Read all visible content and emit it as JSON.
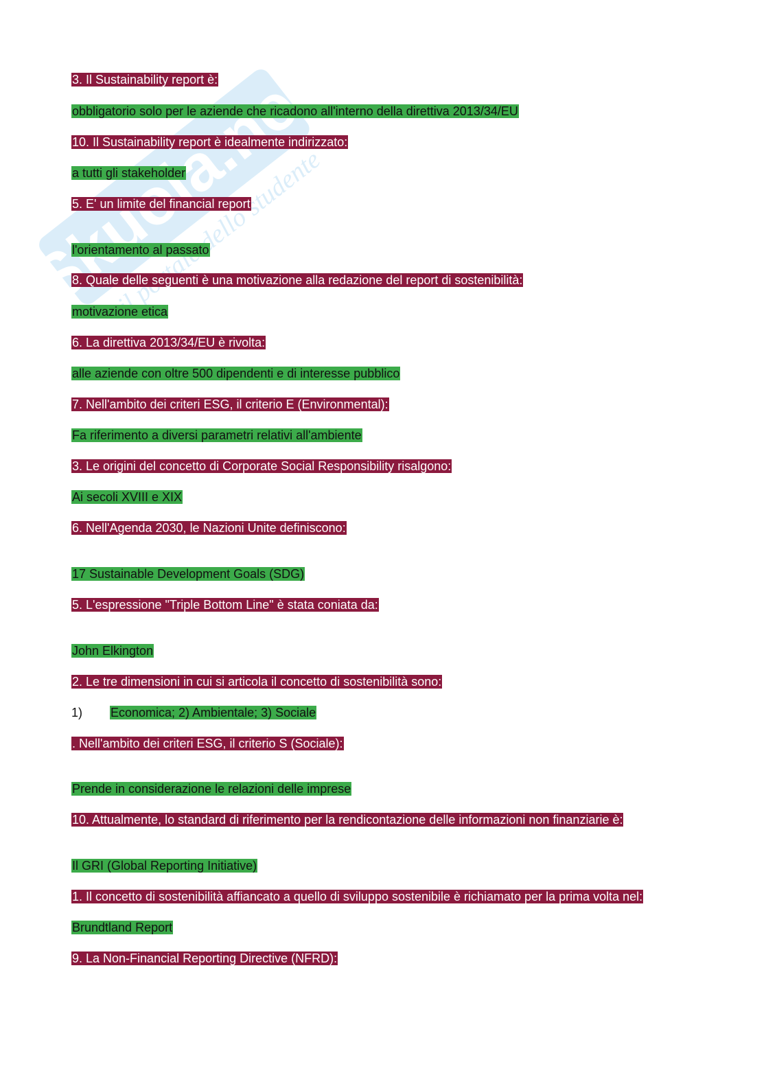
{
  "watermark": {
    "logo_text": "Skuola.net",
    "tagline": "il portale dello studente"
  },
  "lines": [
    {
      "type": "q",
      "text": "3. Il Sustainability report è:"
    },
    {
      "type": "a",
      "text": "obbligatorio solo per le aziende che ricadono all'interno della direttiva 2013/34/EU"
    },
    {
      "type": "q",
      "text": "10. Il Sustainability report è idealmente indirizzato:"
    },
    {
      "type": "a",
      "text": "a tutti gli stakeholder"
    },
    {
      "type": "q",
      "text": "5. E' un limite del financial report"
    },
    {
      "type": "a",
      "text": "l'orientamento al passato"
    },
    {
      "type": "q",
      "text": "8. Quale delle seguenti è una motivazione alla redazione del report di sostenibilità:"
    },
    {
      "type": "a",
      "text": "motivazione etica"
    },
    {
      "type": "q",
      "text": "6. La direttiva 2013/34/EU è rivolta:"
    },
    {
      "type": "a",
      "text": "alle aziende con oltre 500 dipendenti e di interesse pubblico"
    },
    {
      "type": "q",
      "text": "7. Nell'ambito dei criteri ESG, il criterio E (Environmental):"
    },
    {
      "type": "a",
      "text": "Fa riferimento a diversi parametri relativi all'ambiente"
    },
    {
      "type": "q",
      "text": "3. Le origini del concetto di Corporate Social Responsibility risalgono:"
    },
    {
      "type": "a",
      "text": "Ai secoli XVIII e XIX"
    },
    {
      "type": "q",
      "text": "6. Nell'Agenda 2030, le Nazioni Unite definiscono:"
    },
    {
      "type": "a",
      "text": "17 Sustainable Development Goals (SDG)"
    },
    {
      "type": "q",
      "text": "5. L'espressione \"Triple Bottom Line\" è stata coniata da:"
    },
    {
      "type": "a",
      "text": "John Elkington"
    },
    {
      "type": "q",
      "text": "2. Le tre dimensioni in cui si articola il concetto di sostenibilità sono:"
    },
    {
      "type": "a",
      "prefix": "1)",
      "text": "Economica; 2) Ambientale; 3) Sociale"
    },
    {
      "type": "q",
      "text": ". Nell'ambito dei criteri ESG, il criterio S (Sociale):"
    },
    {
      "type": "a",
      "text": "Prende in considerazione le relazioni delle imprese"
    },
    {
      "type": "q",
      "text": "10. Attualmente, lo standard di riferimento per la rendicontazione delle informazioni non finanziarie è:"
    },
    {
      "type": "a",
      "text": "Il GRI (Global Reporting Initiative)"
    },
    {
      "type": "q",
      "text": "1. Il concetto di sostenibilità affiancato a quello di sviluppo sostenibile è richiamato per la prima volta nel:"
    },
    {
      "type": "a",
      "text": "Brundtland Report"
    },
    {
      "type": "q",
      "text": "9. La Non-Financial Reporting Directive (NFRD):"
    }
  ]
}
